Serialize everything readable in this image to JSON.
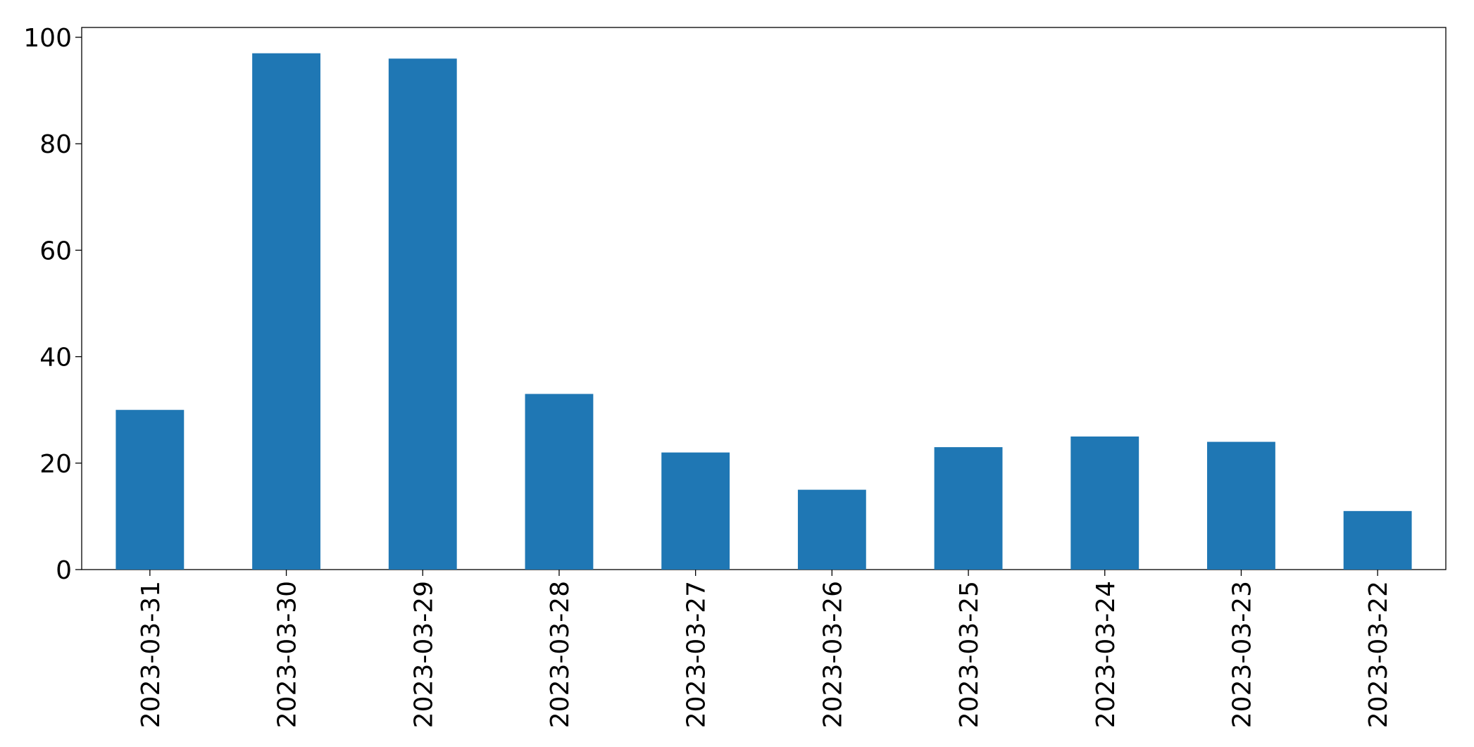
{
  "chart_data": {
    "type": "bar",
    "categories": [
      "2023-03-31",
      "2023-03-30",
      "2023-03-29",
      "2023-03-28",
      "2023-03-27",
      "2023-03-26",
      "2023-03-25",
      "2023-03-24",
      "2023-03-23",
      "2023-03-22"
    ],
    "values": [
      30,
      97,
      96,
      33,
      22,
      15,
      23,
      25,
      24,
      11
    ],
    "color": "#1f77b4",
    "ylim": [
      0,
      101.85
    ],
    "yticks": [
      0,
      20,
      40,
      60,
      80,
      100
    ],
    "grid": false
  }
}
